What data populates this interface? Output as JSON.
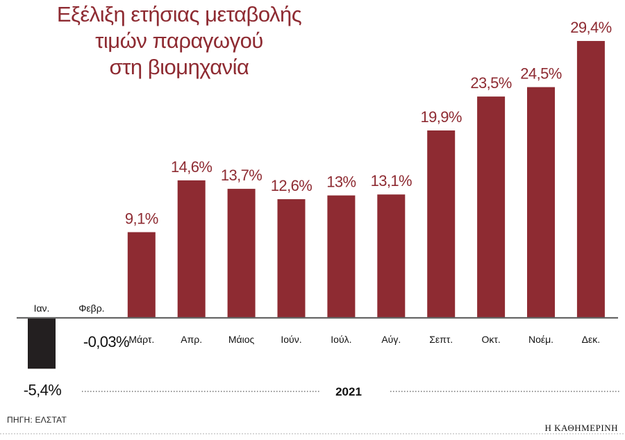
{
  "title_lines": [
    "Εξέλιξη ετήσιας μεταβολής",
    "τιμών παραγωγού",
    "στη βιομηχανία"
  ],
  "source": "ΠΗΓΗ: ΕΛΣΤΑΤ",
  "brand": "Η ΚΑΘΗΜΕΡΙΝΗ",
  "colors": {
    "positive": "#8e2b32",
    "negative": "#231f20",
    "label_positive": "#8e2b32",
    "label_negative": "#111111"
  },
  "chart_data": {
    "type": "bar",
    "year_label": "2021",
    "categories": [
      "Ιαν.",
      "Φεβρ.",
      "Μάρτ.",
      "Απρ.",
      "Μάιος",
      "Ιούν.",
      "Ιούλ.",
      "Αύγ.",
      "Σεπτ.",
      "Οκτ.",
      "Νοέμ.",
      "Δεκ."
    ],
    "values": [
      -5.4,
      -0.03,
      9.1,
      14.6,
      13.7,
      12.6,
      13,
      13.1,
      19.9,
      23.5,
      24.5,
      29.4
    ],
    "value_labels": [
      "-5,4%",
      "-0,03%",
      "9,1%",
      "14,6%",
      "13,7%",
      "12,6%",
      "13%",
      "13,1%",
      "19,9%",
      "23,5%",
      "24,5%",
      "29,4%"
    ],
    "unit": "%"
  }
}
